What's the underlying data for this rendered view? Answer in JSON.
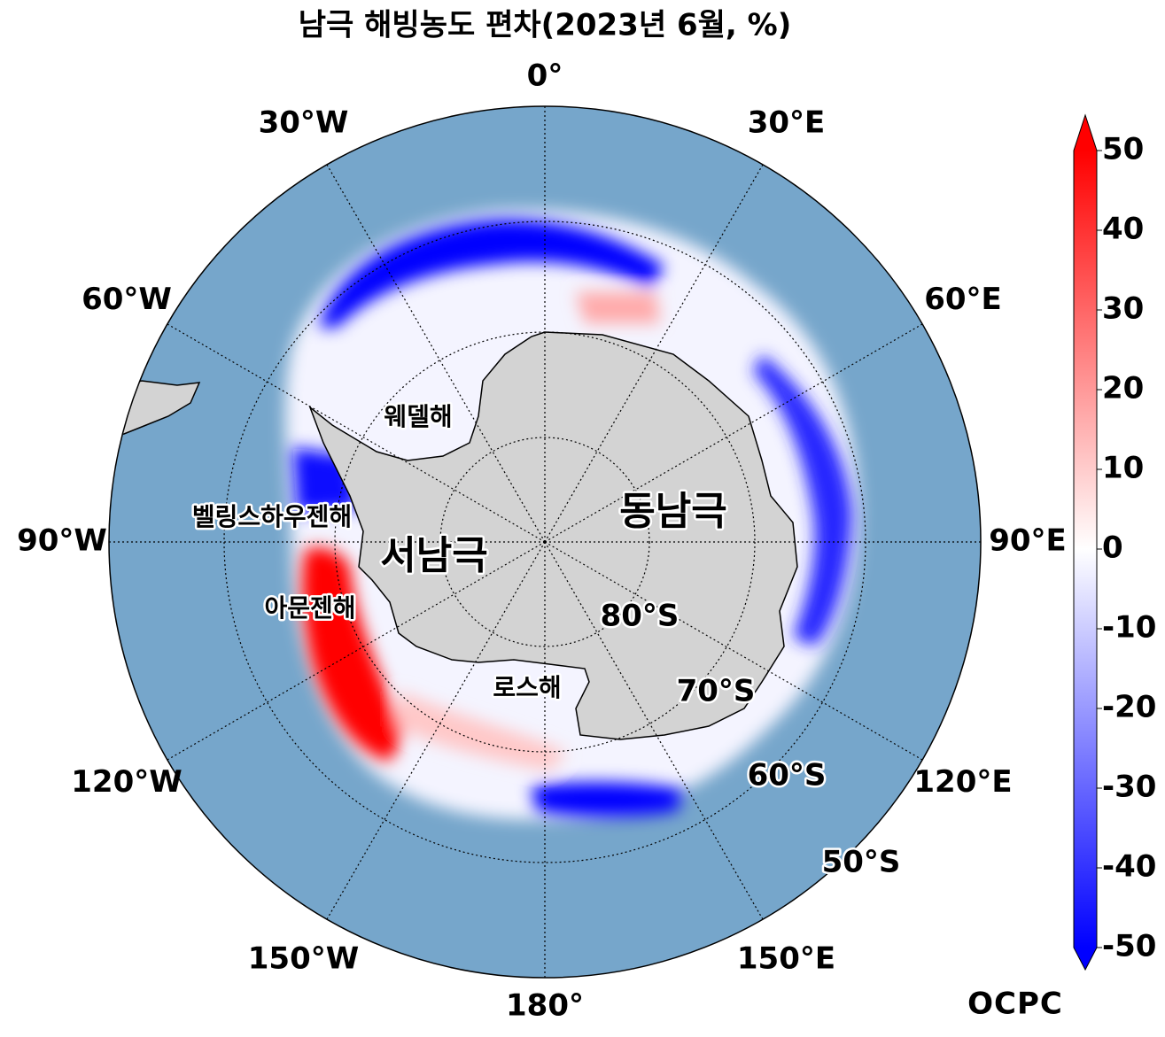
{
  "title": "남극 해빙농도 편차(2023년 6월, %)",
  "map": {
    "longitude_labels": [
      "0°",
      "30°E",
      "60°E",
      "90°E",
      "120°E",
      "150°E",
      "180°",
      "150°W",
      "120°W",
      "90°W",
      "60°W",
      "30°W"
    ],
    "latitude_labels": [
      "80°S",
      "70°S",
      "60°S",
      "50°S"
    ],
    "region_labels": [
      "웨델해",
      "벨링스하우젠해",
      "아문젠해",
      "로스해",
      "서남극",
      "동남극"
    ]
  },
  "colorbar": {
    "lim": [
      -50,
      50
    ],
    "ticks": [
      50,
      40,
      30,
      20,
      10,
      0,
      -10,
      -20,
      -30,
      -40,
      -50
    ],
    "colors": [
      "#0000ff",
      "#ffffff",
      "#ff0000"
    ]
  },
  "logo": "OCPC"
}
